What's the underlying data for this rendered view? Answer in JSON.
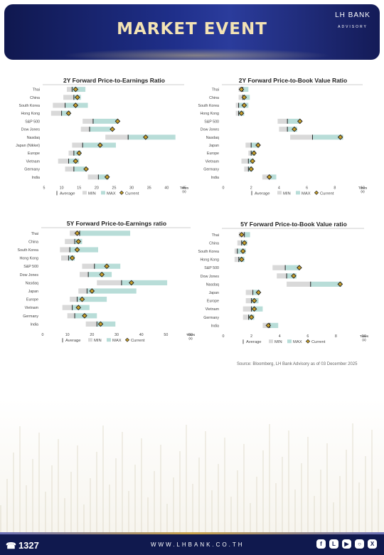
{
  "header": {
    "title": "MARKET EVENT",
    "logo_line1": "LH BANK",
    "logo_line2": "ADVISORY"
  },
  "footer": {
    "phone": "1327",
    "url": "WWW.LHBANK.CO.TH",
    "social_icons": [
      "facebook-icon",
      "line-icon",
      "youtube-icon",
      "instagram-icon",
      "x-icon"
    ]
  },
  "source": "Source: Bloomberg,  LH Bank Advisory  as of 03 December 2025",
  "colors": {
    "avg": "#222222",
    "min": "#d9d9d9",
    "max": "#b8ddd8",
    "current_fill": "#c8a02a",
    "current_edge": "#222222",
    "header_bg": "#1a2570",
    "title": "#f3e3b4"
  },
  "chart_data": [
    {
      "id": "pe2y",
      "type": "bar",
      "title": "2Y Forward Price-to-Earnings Ratio",
      "unit": "Times (x)",
      "xlim": [
        5,
        45
      ],
      "xticks": [
        5,
        10,
        15,
        20,
        25,
        30,
        35,
        40,
        45
      ],
      "legend": [
        "Average",
        "MIN",
        "MAX",
        "Current"
      ],
      "rows": [
        {
          "name": "Thai",
          "min": 11.5,
          "avg": 13,
          "max": 16.8,
          "current": 14
        },
        {
          "name": "China",
          "min": 10.5,
          "avg": 13.5,
          "max": 15.5,
          "current": 14.5
        },
        {
          "name": "South Korea",
          "min": 7.5,
          "avg": 11,
          "max": 17.5,
          "current": 14
        },
        {
          "name": "Hong Kong",
          "min": 7,
          "avg": 10,
          "max": 12.5,
          "current": 12
        },
        {
          "name": "S&P 500",
          "min": 16,
          "avg": 19,
          "max": 26,
          "current": 26
        },
        {
          "name": "Dow Jones",
          "min": 15.5,
          "avg": 18,
          "max": 24,
          "current": 24.5
        },
        {
          "name": "Nasdaq",
          "min": 22.5,
          "avg": 29,
          "max": 42.5,
          "current": 34
        },
        {
          "name": "Japan (Nikkei)",
          "min": 13,
          "avg": 16,
          "max": 25.5,
          "current": 21
        },
        {
          "name": "Europe",
          "min": 12,
          "avg": 13.5,
          "max": 15.5,
          "current": 15
        },
        {
          "name": "Vietnam",
          "min": 9,
          "avg": 12,
          "max": 15,
          "current": 14
        },
        {
          "name": "Germany",
          "min": 11,
          "avg": 13.5,
          "max": 17,
          "current": 17
        },
        {
          "name": "India",
          "min": 17.5,
          "avg": 20.5,
          "max": 23.5,
          "current": 23
        }
      ]
    },
    {
      "id": "pb2y",
      "type": "bar",
      "title": "2Y Forward Price-to-Book Value Ratio",
      "unit": "Times (x)",
      "xlim": [
        0,
        10
      ],
      "xticks": [
        0,
        2,
        4,
        6,
        8,
        10
      ],
      "legend": [
        "Average",
        "MIN",
        "MAX",
        "Current"
      ],
      "rows": [
        {
          "name": "Thai",
          "min": 1.1,
          "avg": 1.4,
          "max": 1.8,
          "current": 1.3
        },
        {
          "name": "China",
          "min": 1.1,
          "avg": 1.4,
          "max": 1.9,
          "current": 1.5
        },
        {
          "name": "South Korea",
          "min": 0.9,
          "avg": 1.1,
          "max": 1.8,
          "current": 1.5
        },
        {
          "name": "Hong Kong",
          "min": 0.9,
          "avg": 1.1,
          "max": 1.5,
          "current": 1.3
        },
        {
          "name": "S&P 500",
          "min": 3.9,
          "avg": 4.6,
          "max": 5.5,
          "current": 5.5
        },
        {
          "name": "Dow Jones",
          "min": 4,
          "avg": 4.6,
          "max": 5.3,
          "current": 5.1
        },
        {
          "name": "Nasdaq",
          "min": 4.8,
          "avg": 6.4,
          "max": 8.6,
          "current": 8.4
        },
        {
          "name": "Japan",
          "min": 1.6,
          "avg": 2.0,
          "max": 2.6,
          "current": 2.5
        },
        {
          "name": "Europe",
          "min": 1.8,
          "avg": 2.0,
          "max": 2.3,
          "current": 2.2
        },
        {
          "name": "Vietnam",
          "min": 1.3,
          "avg": 1.8,
          "max": 2.2,
          "current": 2.1
        },
        {
          "name": "Germany",
          "min": 1.5,
          "avg": 1.8,
          "max": 2.1,
          "current": 2.0
        },
        {
          "name": "India",
          "min": 2.8,
          "avg": 3.3,
          "max": 3.8,
          "current": 3.3
        }
      ]
    },
    {
      "id": "pe5y",
      "type": "bar",
      "title": "5Y Forward Price-to-Earnings ratio",
      "unit": "Times (x)",
      "xlim": [
        0,
        60
      ],
      "xticks": [
        0,
        10,
        20,
        30,
        40,
        50,
        60
      ],
      "legend": [
        "Average",
        "MIN",
        "MAX",
        "Current"
      ],
      "rows": [
        {
          "name": "Thai",
          "min": 11,
          "avg": 15,
          "max": 35.5,
          "current": 14
        },
        {
          "name": "China",
          "min": 9,
          "avg": 13,
          "max": 16,
          "current": 14.5
        },
        {
          "name": "South Korea",
          "min": 7,
          "avg": 11,
          "max": 22.5,
          "current": 14
        },
        {
          "name": "Hong Kong",
          "min": 7.5,
          "avg": 10.5,
          "max": 13,
          "current": 12
        },
        {
          "name": "S&P 500",
          "min": 16,
          "avg": 21,
          "max": 31.5,
          "current": 26
        },
        {
          "name": "Dow Jones",
          "min": 15,
          "avg": 18.5,
          "max": 28,
          "current": 24
        },
        {
          "name": "Nasdaq",
          "min": 22,
          "avg": 32,
          "max": 50.5,
          "current": 36
        },
        {
          "name": "Japan",
          "min": 14.5,
          "avg": 18,
          "max": 38,
          "current": 20
        },
        {
          "name": "Europe",
          "min": 11,
          "avg": 14,
          "max": 26,
          "current": 16
        },
        {
          "name": "Vietnam",
          "min": 8,
          "avg": 12,
          "max": 19,
          "current": 14.5
        },
        {
          "name": "Germany",
          "min": 10,
          "avg": 13,
          "max": 22,
          "current": 17
        },
        {
          "name": "India",
          "min": 17.5,
          "avg": 22,
          "max": 29.5,
          "current": 23.5
        }
      ]
    },
    {
      "id": "pb5y",
      "type": "bar",
      "title": "5Y Forward Price-to-Book Value ratio",
      "unit": "Times (x)",
      "xlim": [
        0,
        10
      ],
      "xticks": [
        0,
        2,
        4,
        6,
        8,
        10
      ],
      "legend": [
        "Average",
        "MIN",
        "MAX",
        "Current"
      ],
      "rows": [
        {
          "name": "Thai",
          "min": 1.1,
          "avg": 1.5,
          "max": 1.9,
          "current": 1.3
        },
        {
          "name": "China",
          "min": 1.0,
          "avg": 1.3,
          "max": 1.7,
          "current": 1.5
        },
        {
          "name": "South Korea",
          "min": 0.8,
          "avg": 1.0,
          "max": 1.6,
          "current": 1.4
        },
        {
          "name": "Hong Kong",
          "min": 0.8,
          "avg": 1.1,
          "max": 1.5,
          "current": 1.3
        },
        {
          "name": "S&P 500",
          "min": 3.5,
          "avg": 4.4,
          "max": 5.4,
          "current": 5.4
        },
        {
          "name": "Dow Jones",
          "min": 3.8,
          "avg": 4.5,
          "max": 5.2,
          "current": 5.0
        },
        {
          "name": "Nasdaq",
          "min": 4.5,
          "avg": 6.2,
          "max": 8.4,
          "current": 8.3
        },
        {
          "name": "Japan",
          "min": 1.6,
          "avg": 2.1,
          "max": 2.6,
          "current": 2.5
        },
        {
          "name": "Europe",
          "min": 1.6,
          "avg": 2.0,
          "max": 2.5,
          "current": 2.2
        },
        {
          "name": "Vietnam",
          "min": 1.4,
          "avg": 2.0,
          "max": 2.8,
          "current": 2.2
        },
        {
          "name": "Germany",
          "min": 1.4,
          "avg": 1.8,
          "max": 2.2,
          "current": 2.0
        },
        {
          "name": "India",
          "min": 2.8,
          "avg": 3.3,
          "max": 3.9,
          "current": 3.2
        }
      ]
    }
  ]
}
